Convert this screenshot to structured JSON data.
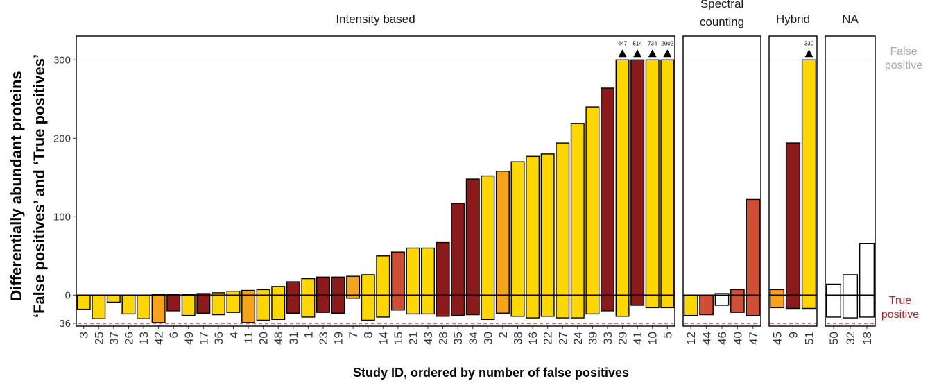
{
  "chart_data": {
    "type": "bar",
    "ylabel_line1": "Differentially abundant proteins",
    "ylabel_line2": "‘False positives’ and ‘True positives’",
    "xlabel": "Study ID, ordered by number of false positives",
    "y_ticks": [
      "0",
      "100",
      "200",
      "300"
    ],
    "y_tick_values": [
      0,
      100,
      200,
      300
    ],
    "true_positive_tick": "36",
    "true_positive_total": 36,
    "ylim": [
      -36,
      330
    ],
    "cap_value": 300,
    "label_false_positive": "False positive",
    "label_true_positive": "True positive",
    "grid": false,
    "colors": {
      "yellow": "#FFD700",
      "orange": "#F5A31A",
      "red": "#CF4F36",
      "darkred": "#8B1A1A",
      "white": "#FFFFFF",
      "true_positive_line": "#E41A1C",
      "false_positive_label": "#A9A9A9",
      "true_positive_label": "#B22222"
    },
    "panels": [
      {
        "strip": [
          "Intensity based"
        ],
        "bars": [
          {
            "id": "3",
            "fp": 0,
            "tp": 18,
            "color": "yellow"
          },
          {
            "id": "25",
            "fp": 0,
            "tp": 30,
            "color": "yellow"
          },
          {
            "id": "37",
            "fp": 0,
            "tp": 9,
            "color": "yellow"
          },
          {
            "id": "26",
            "fp": 0,
            "tp": 24,
            "color": "yellow"
          },
          {
            "id": "13",
            "fp": 0,
            "tp": 30,
            "color": "yellow"
          },
          {
            "id": "42",
            "fp": 1,
            "tp": 35,
            "color": "orange"
          },
          {
            "id": "6",
            "fp": 1,
            "tp": 20,
            "color": "darkred"
          },
          {
            "id": "49",
            "fp": 1,
            "tp": 26,
            "color": "yellow"
          },
          {
            "id": "17",
            "fp": 2,
            "tp": 23,
            "color": "darkred"
          },
          {
            "id": "36",
            "fp": 3,
            "tp": 25,
            "color": "yellow"
          },
          {
            "id": "4",
            "fp": 5,
            "tp": 22,
            "color": "yellow"
          },
          {
            "id": "11",
            "fp": 6,
            "tp": 35,
            "color": "orange"
          },
          {
            "id": "20",
            "fp": 7,
            "tp": 32,
            "color": "yellow"
          },
          {
            "id": "48",
            "fp": 11,
            "tp": 31,
            "color": "yellow"
          },
          {
            "id": "31",
            "fp": 17,
            "tp": 23,
            "color": "darkred"
          },
          {
            "id": "1",
            "fp": 21,
            "tp": 28,
            "color": "yellow"
          },
          {
            "id": "23",
            "fp": 23,
            "tp": 22,
            "color": "darkred"
          },
          {
            "id": "19",
            "fp": 23,
            "tp": 23,
            "color": "darkred"
          },
          {
            "id": "7",
            "fp": 24,
            "tp": 4,
            "color": "orange"
          },
          {
            "id": "8",
            "fp": 26,
            "tp": 32,
            "color": "yellow"
          },
          {
            "id": "14",
            "fp": 50,
            "tp": 28,
            "color": "yellow"
          },
          {
            "id": "15",
            "fp": 55,
            "tp": 19,
            "color": "red"
          },
          {
            "id": "21",
            "fp": 60,
            "tp": 24,
            "color": "yellow"
          },
          {
            "id": "43",
            "fp": 60,
            "tp": 24,
            "color": "yellow"
          },
          {
            "id": "28",
            "fp": 67,
            "tp": 27,
            "color": "darkred"
          },
          {
            "id": "35",
            "fp": 117,
            "tp": 26,
            "color": "darkred"
          },
          {
            "id": "34",
            "fp": 148,
            "tp": 25,
            "color": "darkred"
          },
          {
            "id": "30",
            "fp": 152,
            "tp": 31,
            "color": "yellow"
          },
          {
            "id": "2",
            "fp": 158,
            "tp": 23,
            "color": "orange"
          },
          {
            "id": "38",
            "fp": 170,
            "tp": 27,
            "color": "yellow"
          },
          {
            "id": "16",
            "fp": 177,
            "tp": 29,
            "color": "yellow"
          },
          {
            "id": "22",
            "fp": 180,
            "tp": 27,
            "color": "yellow"
          },
          {
            "id": "27",
            "fp": 194,
            "tp": 29,
            "color": "yellow"
          },
          {
            "id": "24",
            "fp": 219,
            "tp": 29,
            "color": "yellow"
          },
          {
            "id": "39",
            "fp": 240,
            "tp": 24,
            "color": "yellow"
          },
          {
            "id": "33",
            "fp": 264,
            "tp": 20,
            "color": "darkred"
          },
          {
            "id": "29",
            "fp": 447,
            "tp": 27,
            "color": "yellow",
            "label": "447"
          },
          {
            "id": "41",
            "fp": 514,
            "tp": 13,
            "color": "darkred",
            "label": "514"
          },
          {
            "id": "10",
            "fp": 734,
            "tp": 16,
            "color": "yellow",
            "label": "734"
          },
          {
            "id": "5",
            "fp": 2002,
            "tp": 16,
            "color": "yellow",
            "label": "2002"
          }
        ]
      },
      {
        "strip": [
          "Spectral",
          "counting"
        ],
        "bars": [
          {
            "id": "12",
            "fp": 0,
            "tp": 26,
            "color": "yellow"
          },
          {
            "id": "44",
            "fp": 0,
            "tp": 25,
            "color": "red"
          },
          {
            "id": "46",
            "fp": 2,
            "tp": 13,
            "color": "white"
          },
          {
            "id": "40",
            "fp": 7,
            "tp": 22,
            "color": "red"
          },
          {
            "id": "47",
            "fp": 122,
            "tp": 26,
            "color": "red"
          }
        ]
      },
      {
        "strip": [
          "Hybrid"
        ],
        "bars": [
          {
            "id": "45",
            "fp": 7,
            "tp": 16,
            "color": "orange"
          },
          {
            "id": "9",
            "fp": 194,
            "tp": 17,
            "color": "darkred"
          },
          {
            "id": "51",
            "fp": 330,
            "tp": 17,
            "color": "yellow",
            "label": "330"
          }
        ]
      },
      {
        "strip": [
          "NA"
        ],
        "bars": [
          {
            "id": "50",
            "fp": 14,
            "tp": 28,
            "color": "white"
          },
          {
            "id": "32",
            "fp": 26,
            "tp": 29,
            "color": "white"
          },
          {
            "id": "18",
            "fp": 66,
            "tp": 28,
            "color": "white"
          }
        ]
      }
    ]
  }
}
